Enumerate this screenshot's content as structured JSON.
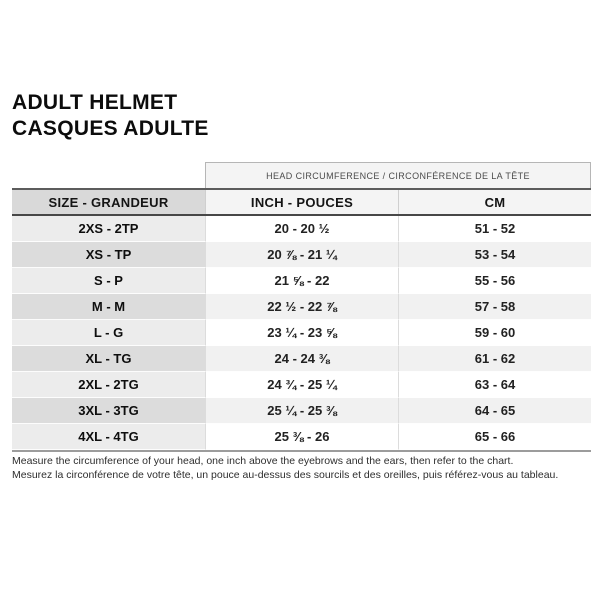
{
  "title": {
    "line_en": "ADULT HELMET",
    "line_fr": "CASQUES ADULTE"
  },
  "table": {
    "span_header": "HEAD CIRCUMFERENCE / CIRCONFÉRENCE DE LA TÊTE",
    "columns": [
      "SIZE - GRANDEUR",
      "INCH - POUCES",
      "CM"
    ],
    "rows": [
      {
        "size": "2XS - 2TP",
        "inch": "20 - 20 ½",
        "cm": "51 - 52"
      },
      {
        "size": "XS - TP",
        "inch": "20 ⅞ - 21 ¼",
        "cm": "53 - 54"
      },
      {
        "size": "S - P",
        "inch": "21 ⅝ - 22",
        "cm": "55 - 56"
      },
      {
        "size": "M - M",
        "inch": "22 ½ - 22 ⅞",
        "cm": "57 - 58"
      },
      {
        "size": "L - G",
        "inch": "23 ¼ - 23 ⅝",
        "cm": "59 - 60"
      },
      {
        "size": "XL - TG",
        "inch": "24 - 24 ⅜",
        "cm": "61 - 62"
      },
      {
        "size": "2XL - 2TG",
        "inch": "24 ¾ - 25 ¼",
        "cm": "63 - 64"
      },
      {
        "size": "3XL - 3TG",
        "inch": "25 ¼ - 25 ⅜",
        "cm": "64 - 65"
      },
      {
        "size": "4XL - 4TG",
        "inch": "25 ⅜ - 26",
        "cm": "65 - 66"
      }
    ]
  },
  "footnotes": [
    "Measure the circumference of your head, one inch above the eyebrows and the ears, then refer to the chart.",
    "Mesurez la circonférence de votre tête, un pouce au-dessus des sourcils et des oreilles, puis référez-vous au tableau."
  ],
  "colors": {
    "size_header_bg": "#d9d9d9",
    "value_header_bg": "#f4f4f4",
    "size_cell_odd": "#ececec",
    "size_cell_even": "#dcdcdc",
    "value_cell_odd": "#ffffff",
    "value_cell_even": "#f1f1f1",
    "header_border_dark": "#474747",
    "table_bottom_border": "#9c9c9c",
    "text": "#0c0c0c"
  }
}
